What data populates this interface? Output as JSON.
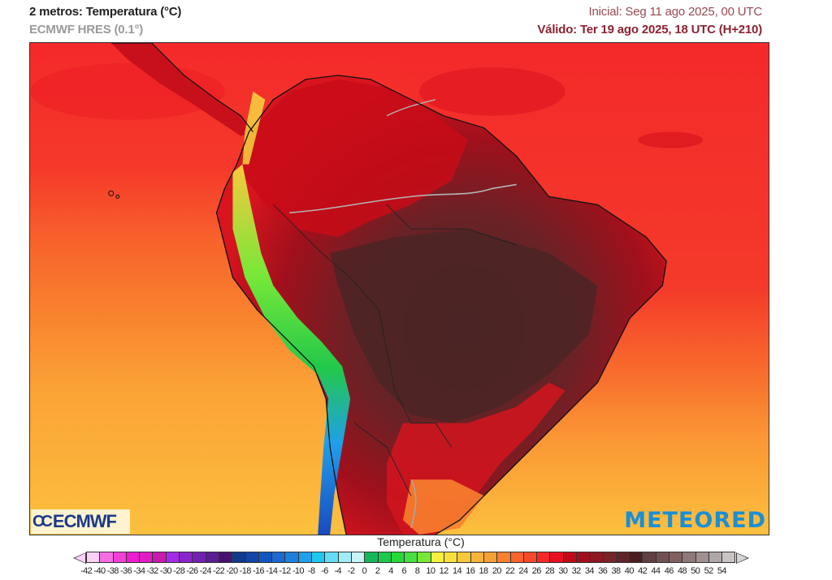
{
  "header": {
    "title": "2 metros: Temperatura (°C)",
    "model": "ECMWF HRES (0.1°)",
    "initial": "Inicial: Seg 11 ago 2025, 00 UTC",
    "valid": "Válido: Ter 19 ago 2025, 18 UTC (H+210)"
  },
  "map": {
    "region": "América do Sul",
    "variable": "Temperatura a 2 metros",
    "units": "°C",
    "colors": {
      "ocean_north": "#f4292a",
      "ocean_mid": "#f8662c",
      "ocean_south": "#fbb43a",
      "interior_hot": "#5a2a2a",
      "land_hot": "#b40f1a",
      "andes_cold": "#22c84a",
      "andes_very_cold": "#1a6ac8"
    }
  },
  "logos": {
    "left": "ECMWF",
    "left_glyph": "CC",
    "right": "METEORED"
  },
  "colorbar": {
    "label": "Temperatura (°C)",
    "ticks": [
      "-42",
      "-40",
      "-38",
      "-36",
      "-34",
      "-32",
      "-30",
      "-28",
      "-26",
      "-24",
      "-22",
      "-20",
      "-18",
      "-16",
      "-14",
      "-12",
      "-10",
      "-8",
      "-6",
      "-4",
      "-2",
      "0",
      "2",
      "4",
      "6",
      "8",
      "10",
      "12",
      "14",
      "16",
      "18",
      "20",
      "22",
      "24",
      "26",
      "28",
      "30",
      "32",
      "34",
      "36",
      "38",
      "40",
      "42",
      "44",
      "46",
      "48",
      "50",
      "52",
      "54"
    ],
    "colors": [
      "#fbd0f5",
      "#f56ee3",
      "#f23fd8",
      "#ee1bd1",
      "#e01cc4",
      "#c81aac",
      "#a62be8",
      "#8c24cc",
      "#7220b0",
      "#5c1c94",
      "#46126e",
      "#123a8c",
      "#1146a8",
      "#1456c0",
      "#1a6ad0",
      "#1e80dc",
      "#20a0e8",
      "#1ec8f0",
      "#64dcf8",
      "#a0ecf8",
      "#c8f4f8",
      "#14b85a",
      "#1ec84a",
      "#28d838",
      "#48e040",
      "#78e838",
      "#f8f040",
      "#f8e040",
      "#f8c83c",
      "#f8b43a",
      "#f8a034",
      "#f8802e",
      "#f8642c",
      "#f84a2a",
      "#f42a2a",
      "#e8101e",
      "#c00a18",
      "#a0101c",
      "#8c1822",
      "#782428",
      "#602428",
      "#4a1e20",
      "#604040",
      "#705050",
      "#806060",
      "#907878",
      "#a09090",
      "#b0a8a8",
      "#c8c4c4"
    ]
  }
}
